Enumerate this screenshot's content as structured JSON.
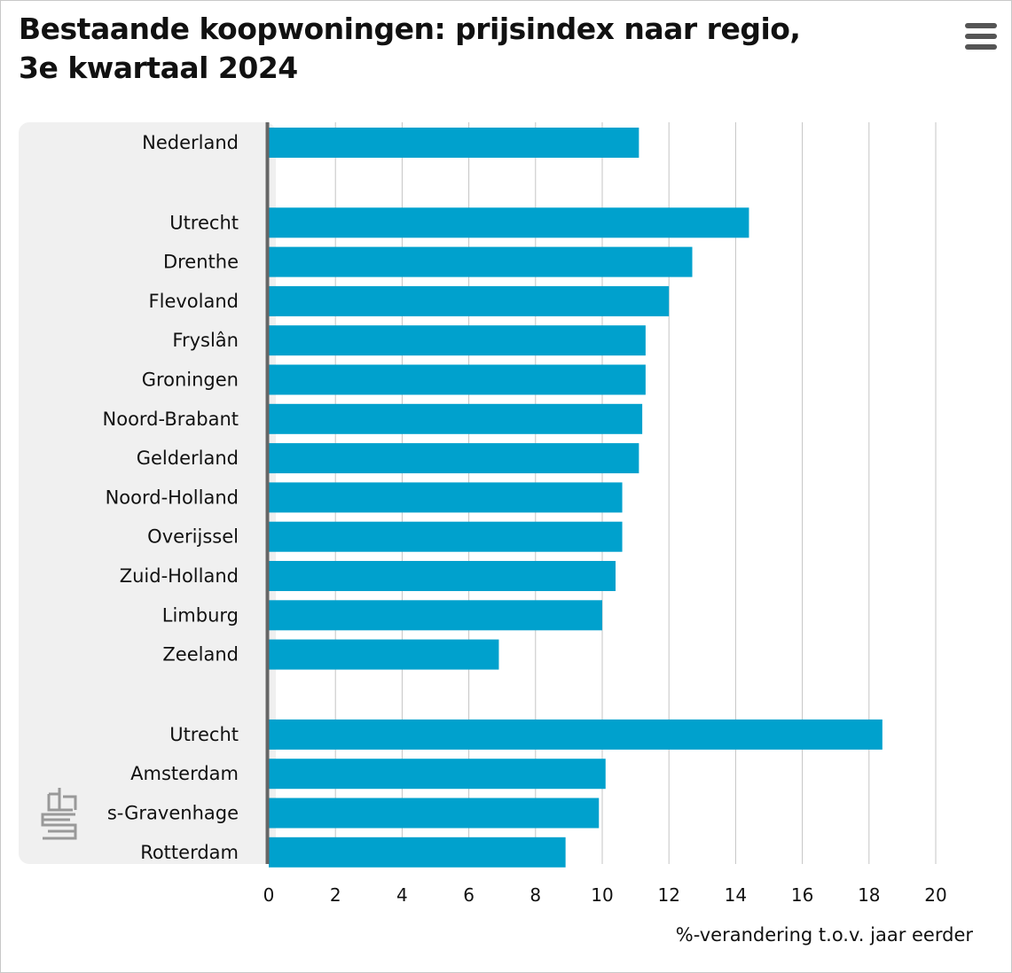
{
  "chart_data": {
    "type": "bar",
    "orientation": "horizontal",
    "title_lines": [
      "Bestaande koopwoningen: prijsindex naar regio,",
      "3e kwartaal 2024"
    ],
    "xlabel": "%-verandering t.o.v. jaar eerder",
    "ylabel": "",
    "xlim": [
      0,
      20
    ],
    "x_ticks": [
      "0",
      "2",
      "4",
      "6",
      "8",
      "10",
      "12",
      "14",
      "16",
      "18",
      "20"
    ],
    "grid": true,
    "bar_color": "#00a1cd",
    "groups": [
      {
        "categories": [
          "Nederland"
        ],
        "values": [
          11.1
        ]
      },
      {
        "categories": [
          "Utrecht",
          "Drenthe",
          "Flevoland",
          "Fryslân",
          "Groningen",
          "Noord-Brabant",
          "Gelderland",
          "Noord-Holland",
          "Overijssel",
          "Zuid-Holland",
          "Limburg",
          "Zeeland"
        ],
        "values": [
          14.4,
          12.7,
          12.0,
          11.3,
          11.3,
          11.2,
          11.1,
          10.6,
          10.6,
          10.4,
          10.0,
          6.9
        ]
      },
      {
        "categories": [
          "Utrecht",
          "Amsterdam",
          "s-Gravenhage",
          "Rotterdam"
        ],
        "values": [
          18.4,
          10.1,
          9.9,
          8.9
        ]
      }
    ]
  },
  "logo": {
    "name": "cbs"
  },
  "menu": {
    "icon": "hamburger-menu-icon"
  }
}
